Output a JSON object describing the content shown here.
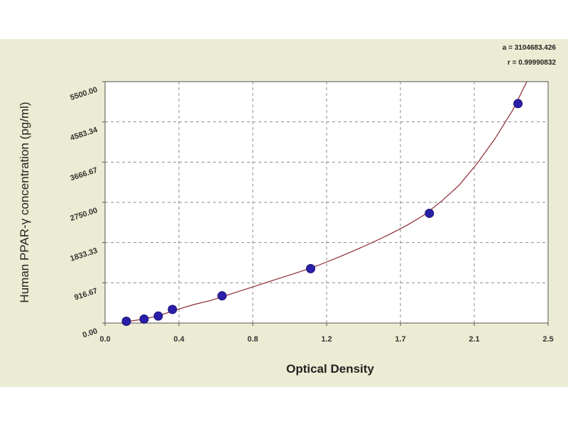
{
  "chart_data": {
    "type": "scatter",
    "title": "",
    "xlabel": "Optical Density",
    "ylabel": "Human PPAR-γ concentration (pg/ml)",
    "xlim": [
      0,
      2.5
    ],
    "ylim": [
      0,
      5500
    ],
    "x_ticks": [
      "0.0",
      "0.4",
      "0.8",
      "1.2",
      "1.7",
      "2.1",
      "2.5"
    ],
    "y_ticks": [
      "0.00",
      "916.67",
      "1833.33",
      "2750.00",
      "3666.67",
      "4583.34",
      "5500.00"
    ],
    "grid": true,
    "stats": {
      "a": "a = 3104683.426",
      "r": "r = 0.99990832"
    },
    "series": [
      {
        "name": "",
        "x": [
          0.12,
          0.22,
          0.3,
          0.38,
          0.66,
          1.16,
          1.83,
          2.33
        ],
        "y": [
          40,
          90,
          160,
          310,
          620,
          1240,
          2500,
          5000
        ]
      }
    ],
    "fit_curve": {
      "x": [
        0.1,
        0.2,
        0.3,
        0.4,
        0.5,
        0.6,
        0.7,
        0.8,
        0.9,
        1.0,
        1.1,
        1.2,
        1.3,
        1.4,
        1.5,
        1.6,
        1.7,
        1.8,
        1.9,
        2.0,
        2.1,
        2.2,
        2.3,
        2.38
      ],
      "y": [
        20,
        80,
        160,
        300,
        420,
        520,
        650,
        780,
        910,
        1040,
        1170,
        1310,
        1470,
        1640,
        1820,
        2010,
        2220,
        2460,
        2780,
        3150,
        3640,
        4200,
        4850,
        5500
      ]
    },
    "colors": {
      "marker": "#2a1fa8",
      "curve": "#8b2a32",
      "grid": "#8a8a8a",
      "panel": "#ececd4",
      "plot_bg": "#ffffff"
    }
  }
}
